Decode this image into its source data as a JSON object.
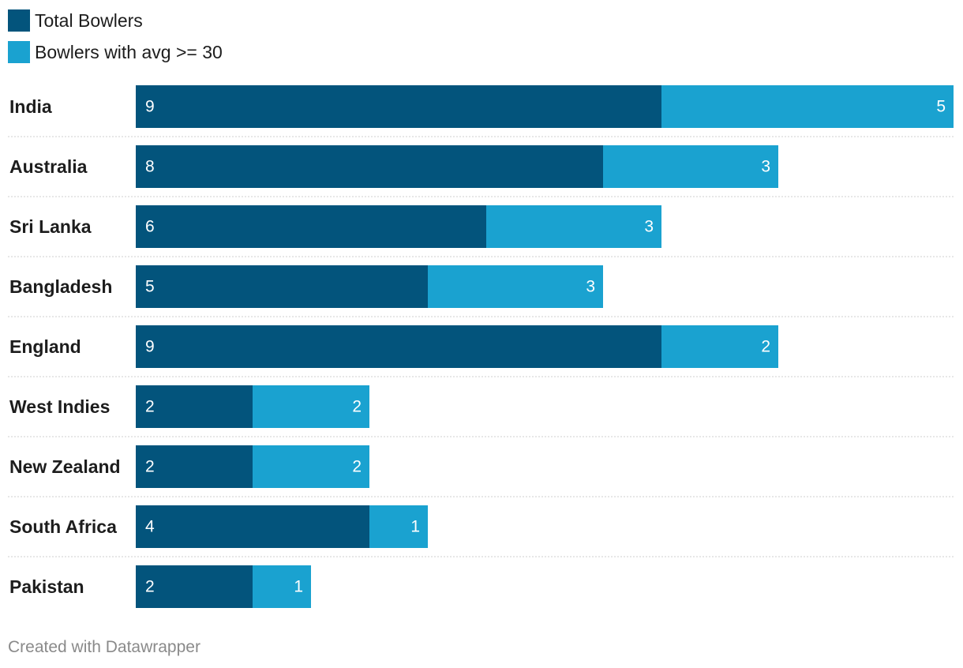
{
  "chart_data": {
    "type": "bar",
    "orientation": "horizontal",
    "stacked": true,
    "categories": [
      "India",
      "Australia",
      "Sri Lanka",
      "Bangladesh",
      "England",
      "West Indies",
      "New Zealand",
      "South Africa",
      "Pakistan"
    ],
    "series": [
      {
        "name": "Total Bowlers",
        "color": "#03547c",
        "values": [
          9,
          8,
          6,
          5,
          9,
          2,
          2,
          4,
          2
        ]
      },
      {
        "name": "Bowlers with avg >= 30",
        "color": "#1aa2d0",
        "values": [
          5,
          3,
          3,
          3,
          2,
          2,
          2,
          1,
          1
        ]
      }
    ],
    "xlim": [
      0,
      14
    ],
    "legend_position": "top-left",
    "grid": false,
    "row_separators": "dotted"
  },
  "footer": {
    "credit": "Created with Datawrapper"
  }
}
